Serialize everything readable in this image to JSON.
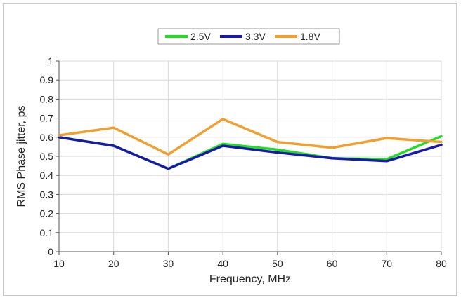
{
  "chart_data": {
    "type": "line",
    "title": "",
    "xlabel": "Frequency, MHz",
    "ylabel": "RMS Phase jitter, ps",
    "x": [
      10,
      20,
      30,
      40,
      50,
      60,
      70,
      80
    ],
    "xlim": [
      10,
      80
    ],
    "ylim": [
      0,
      1
    ],
    "xticks": [
      "10",
      "20",
      "30",
      "40",
      "50",
      "60",
      "70",
      "80"
    ],
    "yticks": [
      "0",
      "0.1",
      "0.2",
      "0.3",
      "0.4",
      "0.5",
      "0.6",
      "0.7",
      "0.8",
      "0.9",
      "1"
    ],
    "grid": true,
    "legend_position": "top-center",
    "series": [
      {
        "name": "2.5V",
        "color": "#22dd22",
        "values": [
          0.6,
          0.555,
          0.435,
          0.565,
          0.535,
          0.49,
          0.485,
          0.605
        ]
      },
      {
        "name": "3.3V",
        "color": "#1a1aa8",
        "values": [
          0.6,
          0.555,
          0.435,
          0.555,
          0.52,
          0.49,
          0.475,
          0.56
        ]
      },
      {
        "name": "1.8V",
        "color": "#f0a030",
        "values": [
          0.61,
          0.65,
          0.51,
          0.695,
          0.575,
          0.545,
          0.595,
          0.575
        ]
      }
    ]
  }
}
